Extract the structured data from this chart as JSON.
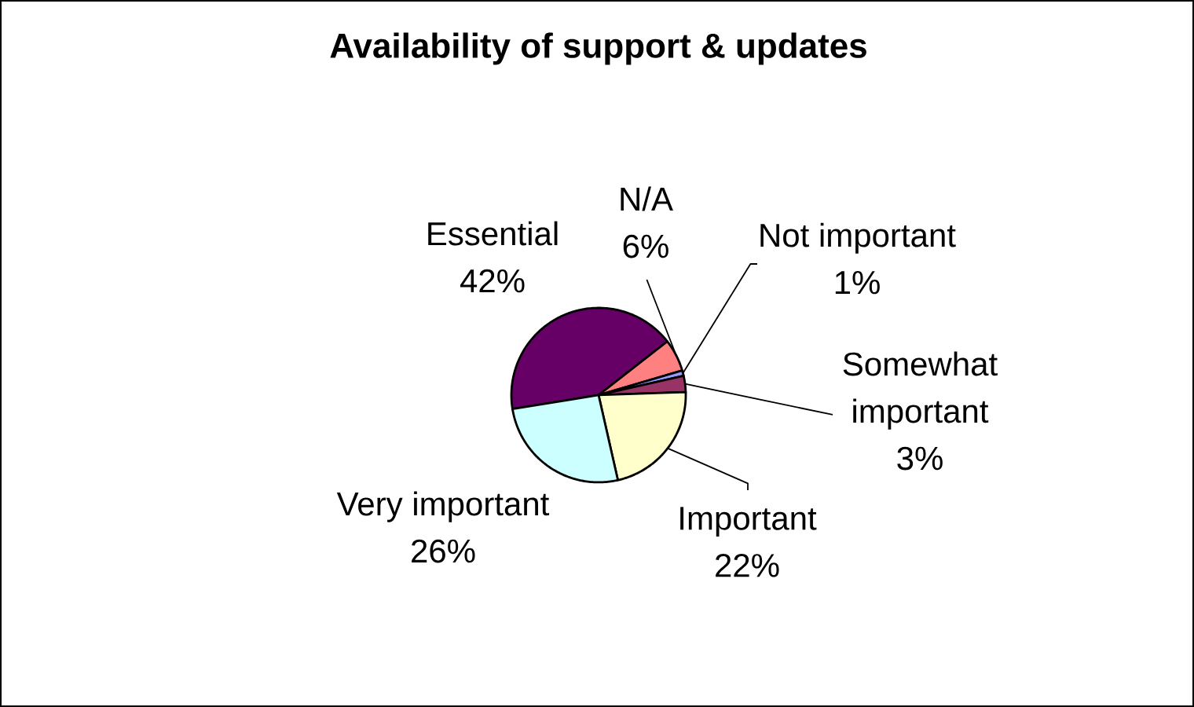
{
  "chart_data": {
    "type": "pie",
    "title": "Availability of support & updates",
    "categories": [
      "Essential",
      "N/A",
      "Not important",
      "Somewhat important",
      "Important",
      "Very important"
    ],
    "values": [
      42,
      6,
      1,
      3,
      22,
      26
    ],
    "value_labels": [
      "42%",
      "6%",
      "1%",
      "3%",
      "22%",
      "26%"
    ],
    "colors": [
      "#660066",
      "#ff8080",
      "#9999ff",
      "#993366",
      "#ffffcc",
      "#ccffff"
    ]
  }
}
